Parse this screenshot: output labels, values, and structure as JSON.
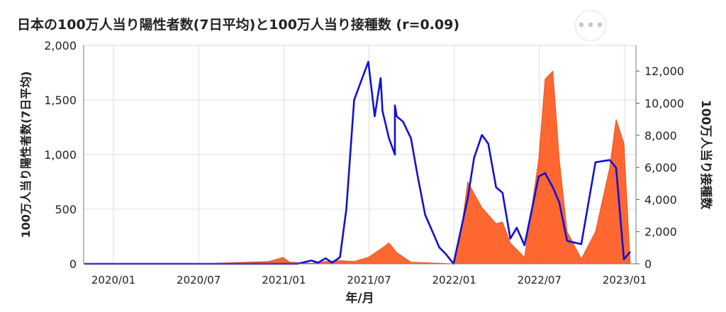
{
  "title": "日本の100万人当り陽性者数(7日平均)と100万人当り接種数 (r=0.09)",
  "menu_icon": "ellipsis-icon",
  "chart_data": {
    "type": "line+area",
    "title": "日本の100万人当り陽性者数(7日平均)と100万人当り接種数 (r=0.09)",
    "xlabel": "年/月",
    "ylabel_left": "100万人当り陽性者数(7日平均)",
    "ylabel_right": "100万人当り接種数",
    "x_ticks": [
      "2020/01",
      "2020/07",
      "2021/01",
      "2021/07",
      "2022/01",
      "2022/07",
      "2023/01"
    ],
    "x_range": [
      "2019/11",
      "2023/01"
    ],
    "y_left_ticks": [
      "0",
      "500",
      "1,000",
      "1,500",
      "2,000"
    ],
    "y_left_range": [
      0,
      2000
    ],
    "y_right_ticks": [
      "0",
      "2,000",
      "4,000",
      "6,000",
      "8,000",
      "10,000",
      "12,000"
    ],
    "y_right_range": [
      0,
      13600
    ],
    "grid": true,
    "colors": {
      "cases": "#1010d8",
      "vaccinations": "#ff5a1f"
    },
    "series": [
      {
        "axis": "left",
        "style": "line",
        "points": [
          [
            "2019/11",
            0
          ],
          [
            "2020/06",
            0
          ],
          [
            "2021/01",
            0
          ],
          [
            "2021/02",
            0
          ],
          [
            "2021/03",
            30
          ],
          [
            "2021/03",
            10
          ],
          [
            "2021/04",
            50
          ],
          [
            "2021/04",
            10
          ],
          [
            "2021/05",
            60
          ],
          [
            "2021/05",
            500
          ],
          [
            "2021/06",
            1500
          ],
          [
            "2021/07",
            1850
          ],
          [
            "2021/07",
            1350
          ],
          [
            "2021/07",
            1700
          ],
          [
            "2021/08",
            1400
          ],
          [
            "2021/08",
            1150
          ],
          [
            "2021/08",
            1000
          ],
          [
            "2021/08",
            1450
          ],
          [
            "2021/09",
            1350
          ],
          [
            "2021/09",
            1300
          ],
          [
            "2021/10",
            1150
          ],
          [
            "2021/10",
            820
          ],
          [
            "2021/11",
            450
          ],
          [
            "2021/12",
            150
          ],
          [
            "2021/12",
            90
          ],
          [
            "2022/01",
            0
          ],
          [
            "2022/02",
            600
          ],
          [
            "2022/02",
            970
          ],
          [
            "2022/03",
            1180
          ],
          [
            "2022/03",
            1100
          ],
          [
            "2022/04",
            700
          ],
          [
            "2022/04",
            650
          ],
          [
            "2022/05",
            230
          ],
          [
            "2022/05",
            330
          ],
          [
            "2022/06",
            170
          ],
          [
            "2022/07",
            800
          ],
          [
            "2022/07",
            830
          ],
          [
            "2022/08",
            700
          ],
          [
            "2022/08",
            560
          ],
          [
            "2022/09",
            210
          ],
          [
            "2022/10",
            180
          ],
          [
            "2022/11",
            930
          ],
          [
            "2022/12",
            950
          ],
          [
            "2022/12",
            880
          ],
          [
            "2023/01",
            40
          ],
          [
            "2023/01",
            110
          ]
        ]
      },
      {
        "axis": "right",
        "style": "area",
        "points": [
          [
            "2019/11",
            0
          ],
          [
            "2020/07",
            0
          ],
          [
            "2020/12",
            150
          ],
          [
            "2021/01",
            400
          ],
          [
            "2021/01",
            100
          ],
          [
            "2021/03",
            30
          ],
          [
            "2021/04",
            150
          ],
          [
            "2021/05",
            200
          ],
          [
            "2021/06",
            150
          ],
          [
            "2021/07",
            400
          ],
          [
            "2021/08",
            1000
          ],
          [
            "2021/08",
            1300
          ],
          [
            "2021/09",
            700
          ],
          [
            "2021/10",
            100
          ],
          [
            "2022/01",
            0
          ],
          [
            "2022/01",
            1500
          ],
          [
            "2022/02",
            5100
          ],
          [
            "2022/03",
            3500
          ],
          [
            "2022/04",
            2500
          ],
          [
            "2022/04",
            2600
          ],
          [
            "2022/05",
            1300
          ],
          [
            "2022/06",
            400
          ],
          [
            "2022/07",
            6500
          ],
          [
            "2022/07",
            11500
          ],
          [
            "2022/08",
            12000
          ],
          [
            "2022/08",
            6500
          ],
          [
            "2022/09",
            2000
          ],
          [
            "2022/10",
            300
          ],
          [
            "2022/11",
            2000
          ],
          [
            "2022/12",
            6000
          ],
          [
            "2022/12",
            9000
          ],
          [
            "2023/01",
            7500
          ],
          [
            "2023/01",
            0
          ]
        ]
      }
    ]
  }
}
